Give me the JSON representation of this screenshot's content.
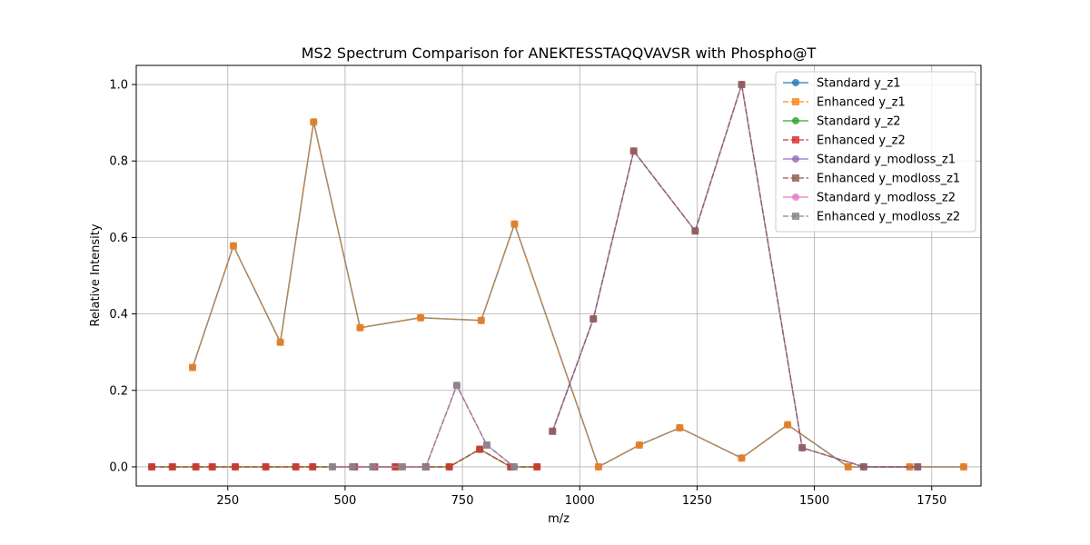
{
  "chart_data": {
    "type": "line",
    "title": "MS2 Spectrum Comparison for ANEKTESSTAQQVAVSR with Phospho@T",
    "xlabel": "m/z",
    "ylabel": "Relative Intensity",
    "xlim": [
      55,
      1855
    ],
    "ylim": [
      -0.05,
      1.05
    ],
    "xticks": [
      250,
      500,
      750,
      1000,
      1250,
      1500,
      1750
    ],
    "yticks": [
      0.0,
      0.2,
      0.4,
      0.6,
      0.8,
      1.0
    ],
    "ytick_labels": [
      "0.0",
      "0.2",
      "0.4",
      "0.6",
      "0.8",
      "1.0"
    ],
    "grid": true,
    "legend_position": "top-right",
    "series": [
      {
        "name": "Standard y_z1",
        "color": "#1f77b4",
        "style": "solid",
        "marker": "circle",
        "x": [
          175,
          262,
          362,
          433,
          532,
          661,
          790,
          861,
          1040,
          1127,
          1213,
          1345,
          1443,
          1572,
          1703,
          1818
        ],
        "y": [
          0.26,
          0.578,
          0.326,
          0.902,
          0.364,
          0.39,
          0.383,
          0.635,
          0.0,
          0.057,
          0.102,
          0.023,
          0.11,
          0.0,
          0.0,
          0.0
        ]
      },
      {
        "name": "Enhanced y_z1",
        "color": "#ff7f0e",
        "style": "dashed",
        "marker": "square",
        "x": [
          175,
          262,
          362,
          433,
          532,
          661,
          790,
          861,
          1040,
          1127,
          1213,
          1345,
          1443,
          1572,
          1703,
          1818
        ],
        "y": [
          0.26,
          0.578,
          0.326,
          0.902,
          0.364,
          0.39,
          0.383,
          0.635,
          0.0,
          0.057,
          0.102,
          0.023,
          0.11,
          0.0,
          0.0,
          0.0
        ]
      },
      {
        "name": "Standard y_z2",
        "color": "#2ca02c",
        "style": "solid",
        "marker": "circle",
        "x": [
          88,
          132,
          182,
          217,
          266,
          331,
          395,
          431,
          520,
          563,
          607,
          672,
          722,
          787,
          853,
          909
        ],
        "y": [
          0.0,
          0.0,
          0.0,
          0.0,
          0.0,
          0.0,
          0.0,
          0.0,
          0.0,
          0.0,
          0.0,
          0.0,
          0.0,
          0.046,
          0.0,
          0.0
        ]
      },
      {
        "name": "Enhanced y_z2",
        "color": "#d62728",
        "style": "dashed",
        "marker": "square",
        "x": [
          88,
          132,
          182,
          217,
          266,
          331,
          395,
          431,
          520,
          563,
          607,
          672,
          722,
          787,
          853,
          909
        ],
        "y": [
          0.0,
          0.0,
          0.0,
          0.0,
          0.0,
          0.0,
          0.0,
          0.0,
          0.0,
          0.0,
          0.0,
          0.0,
          0.0,
          0.046,
          0.0,
          0.0
        ]
      },
      {
        "name": "Standard y_modloss_z1",
        "color": "#9467bd",
        "style": "solid",
        "marker": "circle",
        "x": [
          942,
          1029,
          1115,
          1246,
          1345,
          1474,
          1605,
          1720
        ],
        "y": [
          0.093,
          0.387,
          0.826,
          0.617,
          1.0,
          0.05,
          0.0,
          0.0
        ]
      },
      {
        "name": "Enhanced y_modloss_z1",
        "color": "#8c564b",
        "style": "dashed",
        "marker": "square",
        "x": [
          942,
          1029,
          1115,
          1246,
          1345,
          1474,
          1605,
          1720
        ],
        "y": [
          0.093,
          0.387,
          0.826,
          0.617,
          1.0,
          0.05,
          0.0,
          0.0
        ]
      },
      {
        "name": "Standard y_modloss_z2",
        "color": "#e377c2",
        "style": "solid",
        "marker": "circle",
        "x": [
          473,
          516,
          559,
          622,
          672,
          738,
          802,
          860
        ],
        "y": [
          0.0,
          0.0,
          0.0,
          0.0,
          0.0,
          0.213,
          0.057,
          0.0
        ]
      },
      {
        "name": "Enhanced y_modloss_z2",
        "color": "#7f7f7f",
        "style": "dashed",
        "marker": "square",
        "x": [
          473,
          516,
          559,
          622,
          672,
          738,
          802,
          860
        ],
        "y": [
          0.0,
          0.0,
          0.0,
          0.0,
          0.0,
          0.213,
          0.057,
          0.0
        ]
      }
    ]
  }
}
